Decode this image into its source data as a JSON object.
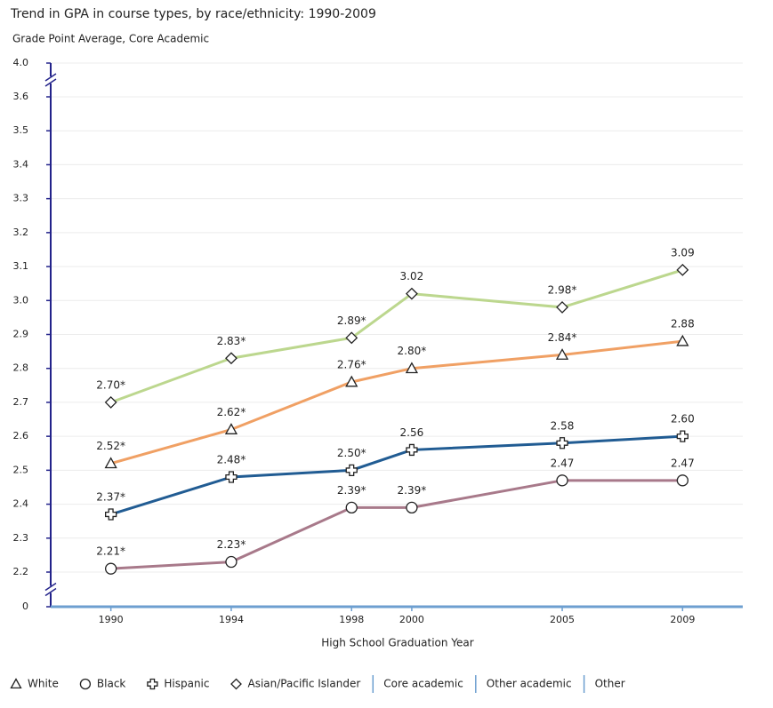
{
  "chart_data": {
    "type": "line",
    "title": "Trend in GPA in course types, by race/ethnicity: 1990-2009",
    "subtitle": "Grade Point Average, Core Academic",
    "xlabel": "High School Graduation Year",
    "x": [
      1990,
      1994,
      1998,
      2000,
      2005,
      2009
    ],
    "xlim": [
      1988,
      2011
    ],
    "xticks": [
      1990,
      1994,
      1998,
      2000,
      2005,
      2009
    ],
    "ylim": [
      0,
      {
        "value": 4,
        "label": "4.0"
      }
    ],
    "yticks": [
      0,
      2.2,
      2.3,
      2.4,
      2.5,
      2.6,
      2.7,
      2.8,
      2.9,
      {
        "value": 3,
        "label": "3.0"
      },
      3.1,
      3.2,
      3.3,
      3.4,
      3.5,
      3.6,
      {
        "value": 4,
        "label": "4.0"
      }
    ],
    "axis_breaks": [
      [
        0,
        2.2
      ],
      [
        3.6,
        4
      ]
    ],
    "grid": true,
    "series": [
      {
        "name": "White",
        "color": "#f0a064",
        "marker": "triangle",
        "values": [
          2.52,
          2.62,
          2.76,
          2.8,
          2.84,
          2.88
        ],
        "value_labels": [
          "2.52*",
          "2.62*",
          "2.76*",
          "2.80*",
          "2.84*",
          "2.88"
        ]
      },
      {
        "name": "Black",
        "color": "#a8798a",
        "marker": "circle",
        "values": [
          2.21,
          2.23,
          2.39,
          2.39,
          2.47,
          2.47
        ],
        "value_labels": [
          "2.21*",
          "2.23*",
          "2.39*",
          "2.39*",
          "2.47",
          "2.47"
        ]
      },
      {
        "name": "Hispanic",
        "color": "#215c93",
        "marker": "cross",
        "values": [
          2.37,
          2.48,
          2.5,
          2.56,
          2.58,
          2.6
        ],
        "value_labels": [
          "2.37*",
          "2.48*",
          "2.50*",
          "2.56",
          "2.58",
          "2.60"
        ]
      },
      {
        "name": "Asian/Pacific Islander",
        "color": "#bcd78e",
        "marker": "diamond",
        "values": [
          2.7,
          2.83,
          2.89,
          3.02,
          2.98,
          3.09
        ],
        "value_labels": [
          "2.70*",
          "2.83*",
          "2.89*",
          "3.02",
          "2.98*",
          "3.09"
        ]
      }
    ]
  },
  "tabs": [
    "Core academic",
    "Other academic",
    "Other"
  ]
}
